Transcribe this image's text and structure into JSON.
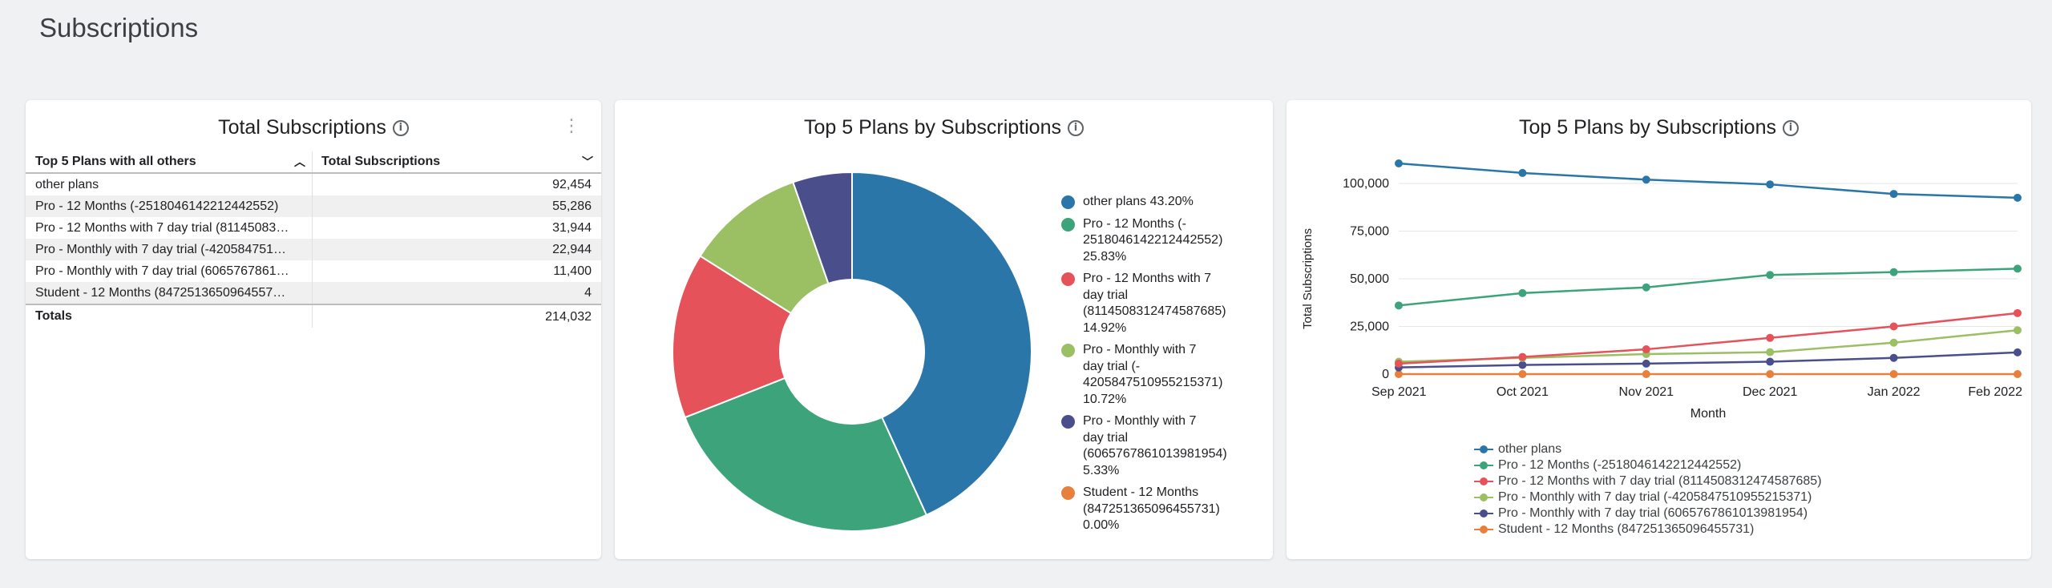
{
  "page": {
    "title": "Subscriptions"
  },
  "colors": {
    "other": "#2a76a8",
    "pro12": "#3ca37b",
    "pro12trial": "#e5525a",
    "promonthly": "#9bbf63",
    "promonthlytrial": "#4a4f8c",
    "student": "#e8803d"
  },
  "table_card": {
    "title": "Total Subscriptions",
    "columns": [
      "Top 5 Plans with all others",
      "Total Subscriptions"
    ],
    "rows": [
      {
        "plan": "other plans",
        "total": "92,454"
      },
      {
        "plan": "Pro - 12 Months (-2518046142212442552)",
        "total": "55,286"
      },
      {
        "plan": "Pro - 12 Months with 7 day trial (81145083…",
        "total": "31,944"
      },
      {
        "plan": "Pro - Monthly with 7 day trial (-420584751…",
        "total": "22,944"
      },
      {
        "plan": "Pro - Monthly with 7 day trial (60657678­61…",
        "total": "11,400"
      },
      {
        "plan": "Student - 12 Months (84725136509645­57…",
        "total": "4"
      }
    ],
    "totals_label": "Totals",
    "totals_value": "214,032"
  },
  "donut_card": {
    "title": "Top 5 Plans by Subscriptions"
  },
  "line_card": {
    "title": "Top 5 Plans by Subscriptions"
  },
  "chart_data": [
    {
      "type": "pie",
      "title": "Top 5 Plans by Subscriptions",
      "slices": [
        {
          "key": "other",
          "label": "other plans 43.20%",
          "value": 43.2
        },
        {
          "key": "pro12",
          "label": "Pro - 12 Months (-\n2518046142212442552)\n25.83%",
          "value": 25.83
        },
        {
          "key": "pro12trial",
          "label": "Pro - 12 Months with 7\nday trial\n(8114508312474587685)\n14.92%",
          "value": 14.92
        },
        {
          "key": "promonthly",
          "label": "Pro - Monthly with 7\nday trial (-\n4205847510955215371)\n10.72%",
          "value": 10.72
        },
        {
          "key": "promonthlytrial",
          "label": "Pro - Monthly with 7\nday trial\n(6065767861013981954)\n5.33%",
          "value": 5.33
        },
        {
          "key": "student",
          "label": "Student - 12 Months\n(847251365096455731)\n0.00%",
          "value": 0.0
        }
      ],
      "legend": "right"
    },
    {
      "type": "line",
      "title": "Top 5 Plans by Subscriptions",
      "xlabel": "Month",
      "ylabel": "Total Subscriptions",
      "categories": [
        "Sep 2021",
        "Oct 2021",
        "Nov 2021",
        "Dec 2021",
        "Jan 2022",
        "Feb 2022"
      ],
      "ylim": [
        0,
        100000
      ],
      "yticks": [
        "0",
        "25,000",
        "50,000",
        "75,000",
        "100,000"
      ],
      "series": [
        {
          "key": "other",
          "name": "other plans",
          "values": [
            110500,
            105500,
            102000,
            99500,
            94500,
            92500
          ]
        },
        {
          "key": "pro12",
          "name": "Pro - 12 Months (-2518046142212442552)",
          "values": [
            36000,
            42500,
            45500,
            52000,
            53500,
            55300
          ]
        },
        {
          "key": "pro12trial",
          "name": "Pro - 12 Months with 7 day trial (8114508312474587685)",
          "values": [
            5500,
            9000,
            13000,
            19000,
            25000,
            32000
          ]
        },
        {
          "key": "promonthly",
          "name": "Pro - Monthly with 7 day trial (-4205847510955215371)",
          "values": [
            6500,
            8500,
            10500,
            11500,
            16500,
            23000
          ]
        },
        {
          "key": "promonthlytrial",
          "name": "Pro - Monthly with 7 day trial (6065767861013981954)",
          "values": [
            3500,
            4800,
            5500,
            6500,
            8500,
            11400
          ]
        },
        {
          "key": "student",
          "name": "Student - 12 Months (847251365096455731)",
          "values": [
            0,
            0,
            0,
            0,
            0,
            4
          ]
        }
      ],
      "grid": true,
      "legend": "bottom"
    }
  ]
}
